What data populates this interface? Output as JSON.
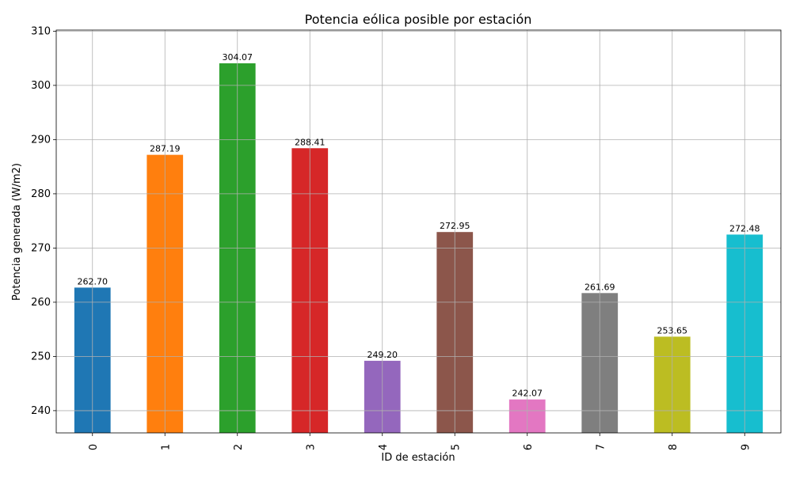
{
  "chart_data": {
    "type": "bar",
    "title": "Potencia eólica posible por estación",
    "xlabel": "ID de estación",
    "ylabel": "Potencia generada (W/m2)",
    "categories": [
      "0",
      "1",
      "2",
      "3",
      "4",
      "5",
      "6",
      "7",
      "8",
      "9"
    ],
    "values": [
      262.7,
      287.19,
      304.07,
      288.41,
      249.2,
      272.95,
      242.07,
      261.69,
      253.65,
      272.48
    ],
    "value_labels": [
      "262.70",
      "287.19",
      "304.07",
      "288.41",
      "249.20",
      "272.95",
      "242.07",
      "261.69",
      "253.65",
      "272.48"
    ],
    "colors": [
      "#1f77b4",
      "#ff7f0e",
      "#2ca02c",
      "#d62728",
      "#9467bd",
      "#8c564b",
      "#e377c2",
      "#7f7f7f",
      "#bcbd22",
      "#17becf"
    ],
    "ylim": [
      235.9,
      310.2
    ],
    "yticks": [
      240,
      250,
      260,
      270,
      280,
      290,
      300,
      310
    ],
    "grid": true,
    "xtick_rotation": "vertical"
  }
}
